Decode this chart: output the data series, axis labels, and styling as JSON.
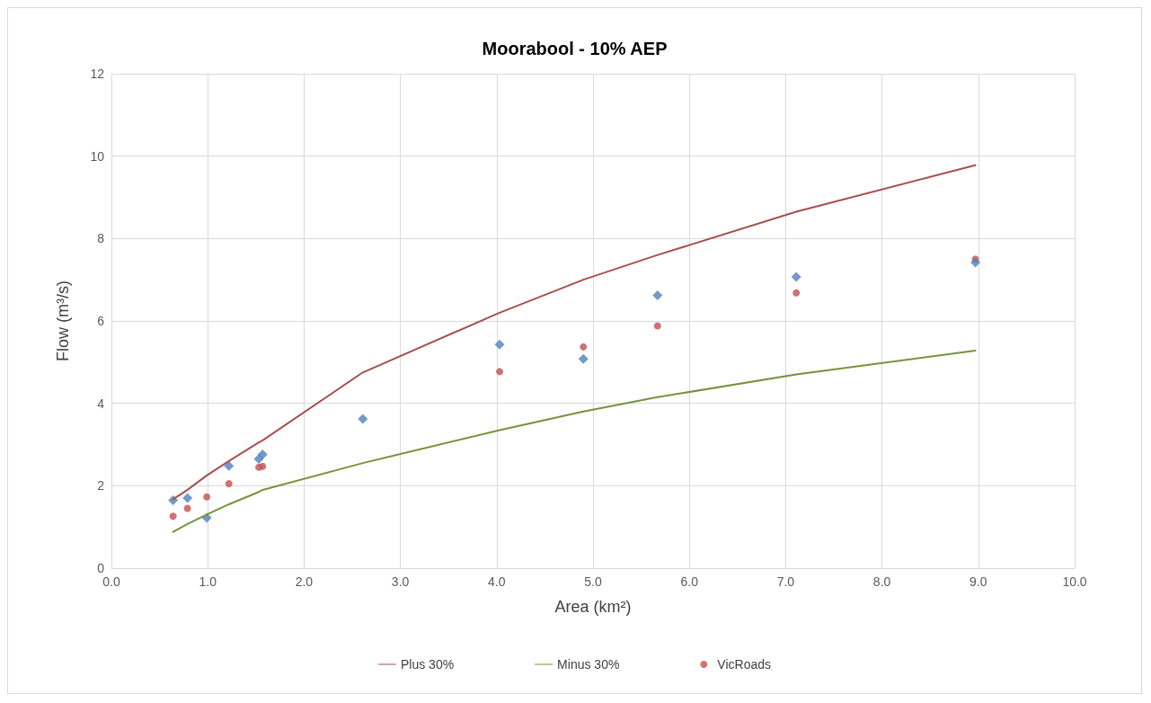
{
  "chart_data": {
    "type": "scatter",
    "title": "Moorabool - 10% AEP",
    "xlabel": "Area (km²)",
    "ylabel": "Flow (m³/s)",
    "xlim": [
      0,
      10
    ],
    "xticks": [
      {
        "value": 0,
        "label": "0.0"
      },
      {
        "value": 1,
        "label": "1.0"
      },
      {
        "value": 2,
        "label": "2.0"
      },
      {
        "value": 3,
        "label": "3.0"
      },
      {
        "value": 4,
        "label": "4.0"
      },
      {
        "value": 5,
        "label": "5.0"
      },
      {
        "value": 6,
        "label": "6.0"
      },
      {
        "value": 7,
        "label": "7.0"
      },
      {
        "value": 8,
        "label": "8.0"
      },
      {
        "value": 9,
        "label": "9.0"
      },
      {
        "value": 10,
        "label": "10.0"
      }
    ],
    "ylim": [
      0,
      12
    ],
    "yticks": [
      0,
      2,
      4,
      6,
      8,
      10,
      12
    ],
    "grid": true,
    "legend": "bottom",
    "series": [
      {
        "name": "Plus 30%",
        "type": "line",
        "marker": "none",
        "color": "#a5504e",
        "x": [
          0.64,
          0.79,
          0.99,
          1.22,
          1.53,
          1.57,
          2.61,
          4.03,
          4.9,
          5.67,
          7.11,
          8.97
        ],
        "values": [
          1.67,
          1.9,
          2.25,
          2.6,
          3.05,
          3.1,
          4.75,
          6.2,
          7.0,
          7.6,
          8.65,
          9.78
        ]
      },
      {
        "name": "Minus 30%",
        "type": "line",
        "marker": "none",
        "color": "#77933c",
        "x": [
          0.64,
          0.79,
          0.99,
          1.22,
          1.53,
          1.57,
          2.61,
          4.03,
          4.9,
          5.67,
          7.11,
          8.97
        ],
        "values": [
          0.88,
          1.07,
          1.3,
          1.55,
          1.85,
          1.9,
          2.55,
          3.35,
          3.8,
          4.15,
          4.7,
          5.28
        ]
      },
      {
        "name": "VicRoads",
        "marker": "circle",
        "color": "#c0504d",
        "x": [
          0.64,
          0.79,
          0.99,
          1.22,
          1.53,
          1.57,
          4.03,
          4.9,
          5.67,
          7.11,
          8.97
        ],
        "values": [
          1.26,
          1.45,
          1.73,
          2.05,
          2.45,
          2.47,
          4.77,
          5.37,
          5.88,
          6.68,
          7.5
        ]
      },
      {
        "marker": "diamond",
        "color": "#4f81bd",
        "x": [
          0.64,
          0.79,
          0.99,
          1.22,
          1.53,
          1.57,
          2.61,
          4.03,
          4.9,
          5.67,
          7.11,
          8.97
        ],
        "values": [
          1.65,
          1.7,
          1.22,
          2.48,
          2.65,
          2.76,
          3.62,
          5.43,
          5.08,
          6.62,
          7.07,
          7.42
        ]
      }
    ]
  }
}
